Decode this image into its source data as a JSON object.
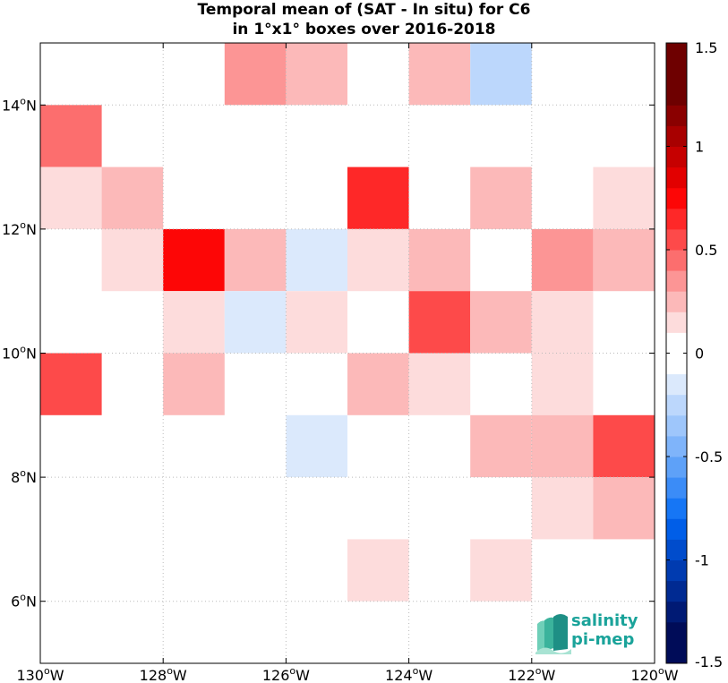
{
  "title": {
    "line1": "Temporal mean of (SAT - In situ) for C6",
    "line2": "in 1°x1° boxes over 2016-2018"
  },
  "chart_data": {
    "type": "heatmap",
    "x_axis": {
      "ticks": [
        -130,
        -128,
        -126,
        -124,
        -122,
        -120
      ],
      "tick_labels": [
        "130°W",
        "128°W",
        "126°W",
        "124°W",
        "122°W",
        "120°W"
      ],
      "lim": [
        -130,
        -120
      ]
    },
    "y_axis": {
      "ticks": [
        6,
        8,
        10,
        12,
        14
      ],
      "tick_labels": [
        "6°N",
        "8°N",
        "10°N",
        "12°N",
        "14°N"
      ],
      "lim": [
        5,
        15
      ]
    },
    "grid": true,
    "colorbar": {
      "lim": [
        -1.5,
        1.5
      ],
      "step": 0.1,
      "ticks": [
        1.5,
        1,
        0.5,
        0,
        -0.5,
        -1,
        -1.5
      ],
      "tick_labels": [
        "1.5",
        "1",
        "0.5",
        "0",
        "-0.5",
        "-1",
        "-1.5"
      ]
    },
    "cells": [
      {
        "lon": -127,
        "lat": 14,
        "value": 0.35
      },
      {
        "lon": -126,
        "lat": 14,
        "value": 0.25
      },
      {
        "lon": -124,
        "lat": 14,
        "value": 0.25
      },
      {
        "lon": -123,
        "lat": 14,
        "value": -0.25
      },
      {
        "lon": -130,
        "lat": 13,
        "value": 0.45
      },
      {
        "lon": -130,
        "lat": 12,
        "value": 0.15
      },
      {
        "lon": -129,
        "lat": 12,
        "value": 0.25
      },
      {
        "lon": -125,
        "lat": 12,
        "value": 0.65
      },
      {
        "lon": -123,
        "lat": 12,
        "value": 0.25
      },
      {
        "lon": -121,
        "lat": 12,
        "value": 0.15
      },
      {
        "lon": -129,
        "lat": 11,
        "value": 0.15
      },
      {
        "lon": -128,
        "lat": 11,
        "value": 0.75
      },
      {
        "lon": -127,
        "lat": 11,
        "value": 0.3
      },
      {
        "lon": -126,
        "lat": 11,
        "value": -0.12
      },
      {
        "lon": -125,
        "lat": 11,
        "value": 0.15
      },
      {
        "lon": -124,
        "lat": 11,
        "value": 0.25
      },
      {
        "lon": -122,
        "lat": 11,
        "value": 0.35
      },
      {
        "lon": -121,
        "lat": 11,
        "value": 0.3
      },
      {
        "lon": -128,
        "lat": 10,
        "value": 0.15
      },
      {
        "lon": -127,
        "lat": 10,
        "value": -0.15
      },
      {
        "lon": -126,
        "lat": 10,
        "value": 0.15
      },
      {
        "lon": -124,
        "lat": 10,
        "value": 0.55
      },
      {
        "lon": -123,
        "lat": 10,
        "value": 0.3
      },
      {
        "lon": -122,
        "lat": 10,
        "value": 0.15
      },
      {
        "lon": -130,
        "lat": 9,
        "value": 0.5
      },
      {
        "lon": -128,
        "lat": 9,
        "value": 0.25
      },
      {
        "lon": -125,
        "lat": 9,
        "value": 0.25
      },
      {
        "lon": -124,
        "lat": 9,
        "value": 0.15
      },
      {
        "lon": -122,
        "lat": 9,
        "value": 0.15
      },
      {
        "lon": -126,
        "lat": 8,
        "value": -0.12
      },
      {
        "lon": -123,
        "lat": 8,
        "value": 0.25
      },
      {
        "lon": -122,
        "lat": 8,
        "value": 0.3
      },
      {
        "lon": -121,
        "lat": 8,
        "value": 0.55
      },
      {
        "lon": -122,
        "lat": 7,
        "value": 0.15
      },
      {
        "lon": -121,
        "lat": 7,
        "value": 0.25
      },
      {
        "lon": -125,
        "lat": 6,
        "value": 0.15
      },
      {
        "lon": -123,
        "lat": 6,
        "value": 0.15
      }
    ]
  },
  "logo": {
    "line1": "salinity",
    "line2": "pi-mep"
  }
}
